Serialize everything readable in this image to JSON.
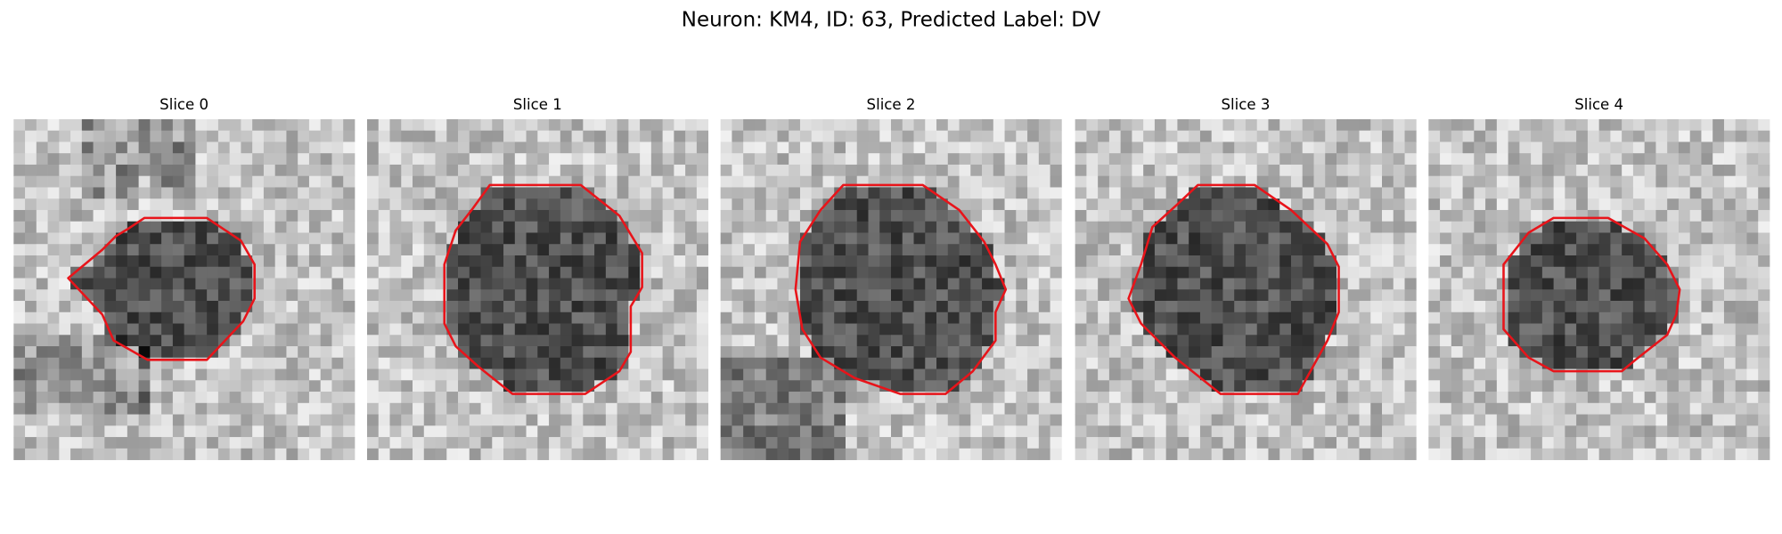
{
  "title": "Neuron: KM4, ID: 63, Predicted Label: DV",
  "panels": [
    {
      "title": "Slice 0"
    },
    {
      "title": "Slice 1"
    },
    {
      "title": "Slice 2"
    },
    {
      "title": "Slice 3"
    },
    {
      "title": "Slice 4"
    }
  ]
}
